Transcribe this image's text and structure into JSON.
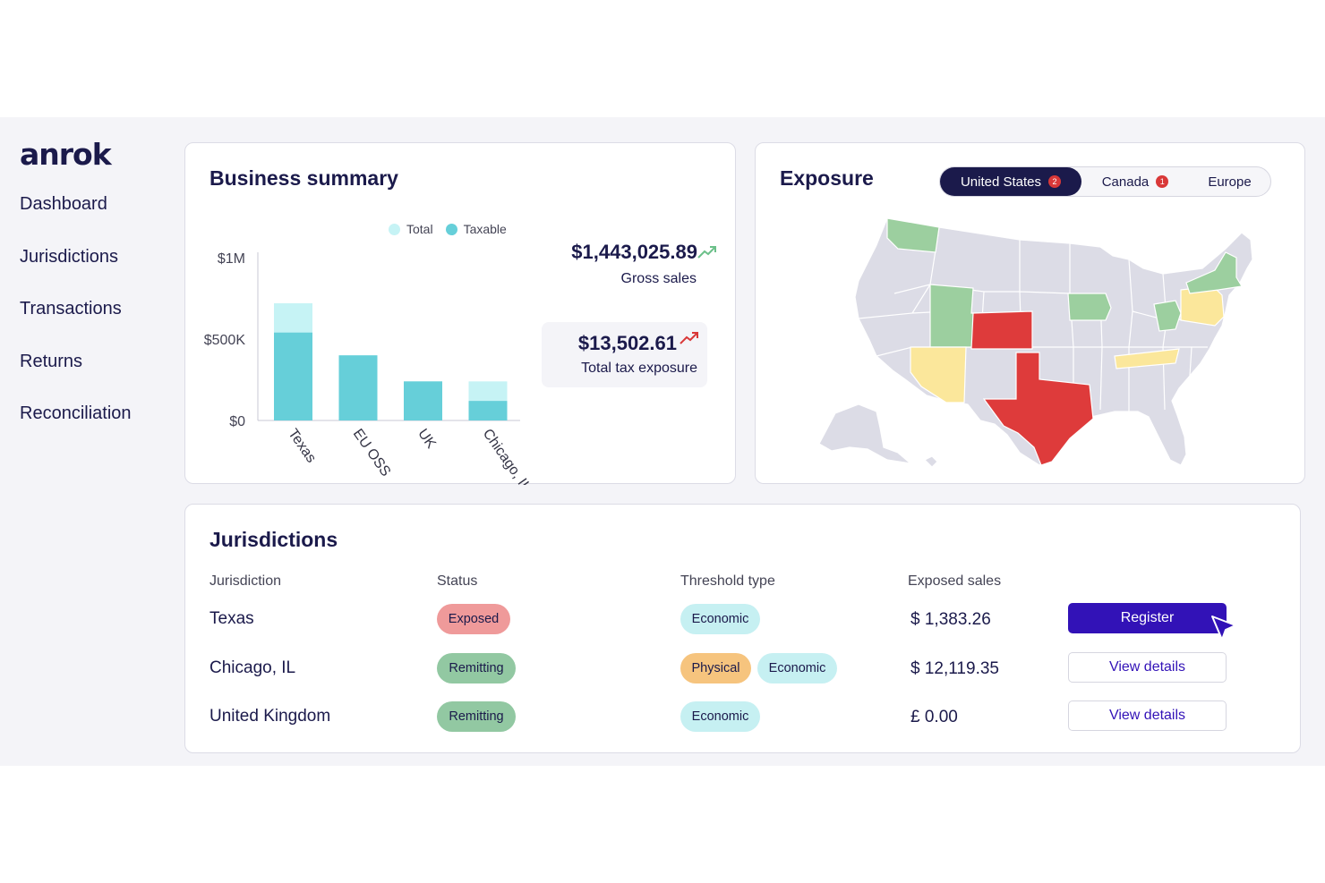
{
  "brand": {
    "logo": "anrok"
  },
  "sidebar": {
    "items": [
      {
        "label": "Dashboard"
      },
      {
        "label": "Jurisdictions"
      },
      {
        "label": "Transactions"
      },
      {
        "label": "Returns"
      },
      {
        "label": "Reconciliation"
      }
    ]
  },
  "business_summary": {
    "title": "Business summary",
    "gross_sales": {
      "value": "$1,443,025.89",
      "label": "Gross sales",
      "trend_icon": "trend-up-green",
      "trend_color": "#6cc08a"
    },
    "tax_exposure": {
      "value": "$13,502.61",
      "label": "Total tax exposure",
      "trend_icon": "trend-up-red",
      "trend_color": "#d93838"
    }
  },
  "chart_data": {
    "type": "bar",
    "title": "",
    "xlabel": "",
    "ylabel": "",
    "categories": [
      "Texas",
      "EU OSS",
      "UK",
      "Chicago, IL"
    ],
    "series": [
      {
        "name": "Total",
        "values": [
          720000,
          400000,
          240000,
          240000
        ],
        "color": "#c6f3f5"
      },
      {
        "name": "Taxable",
        "values": [
          540000,
          400000,
          240000,
          120000
        ],
        "color": "#66cfd9"
      }
    ],
    "stacking": "overlay",
    "ylim": [
      0,
      1000000
    ],
    "yticks": [
      {
        "value": 0,
        "label": "$0"
      },
      {
        "value": 500000,
        "label": "$500K"
      },
      {
        "value": 1000000,
        "label": "$1M"
      }
    ],
    "legend": "top",
    "grid": false
  },
  "exposure": {
    "title": "Exposure",
    "tabs": [
      {
        "label": "United States",
        "badge": "2",
        "active": true
      },
      {
        "label": "Canada",
        "badge": "1",
        "active": false
      },
      {
        "label": "Europe",
        "badge": "",
        "active": false
      }
    ],
    "map": {
      "region": "United States",
      "colors": {
        "exposed": "#de3b3b",
        "approaching": "#fbe79b",
        "registered": "#9ccf9f",
        "none": "#dcdce6"
      },
      "exposed_states": [
        "Texas",
        "Colorado"
      ],
      "approaching_states": [
        "Arizona",
        "Tennessee",
        "Pennsylvania"
      ],
      "registered_states": [
        "Washington",
        "Utah",
        "Iowa",
        "Ohio",
        "New York"
      ]
    }
  },
  "jurisdictions": {
    "title": "Jurisdictions",
    "columns": [
      "Jurisdiction",
      "Status",
      "Threshold type",
      "Exposed sales"
    ],
    "rows": [
      {
        "name": "Texas",
        "status": "Exposed",
        "thresholds": [
          "Economic"
        ],
        "currency": "$",
        "amount": "1,383.26",
        "action": "Register"
      },
      {
        "name": "Chicago, IL",
        "status": "Remitting",
        "thresholds": [
          "Physical",
          "Economic"
        ],
        "currency": "$",
        "amount": "12,119.35",
        "action": "View details"
      },
      {
        "name": "United Kingdom",
        "status": "Remitting",
        "thresholds": [
          "Economic"
        ],
        "currency": "£",
        "amount": "0.00",
        "action": "View details"
      }
    ]
  },
  "colors": {
    "navy": "#1b1a4b",
    "accent": "#3212b7"
  }
}
